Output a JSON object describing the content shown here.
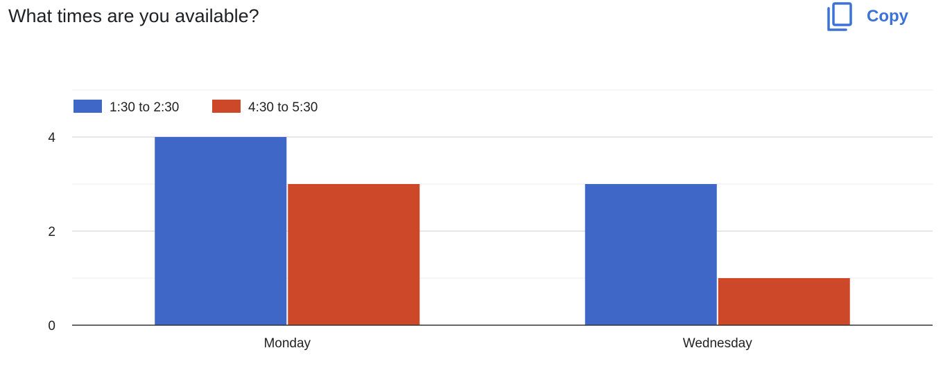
{
  "header": {
    "title": "What times are you available?",
    "copy_label": "Copy",
    "copy_icon": "copy-icon",
    "accent_color": "#3c72d8"
  },
  "chart_data": {
    "type": "bar",
    "categories": [
      "Monday",
      "Wednesday"
    ],
    "series": [
      {
        "name": "1:30 to 2:30",
        "values": [
          4,
          3
        ],
        "color": "#3f67c7"
      },
      {
        "name": "4:30 to 5:30",
        "values": [
          3,
          1
        ],
        "color": "#cc4829"
      }
    ],
    "yticks": [
      0,
      2,
      4
    ],
    "ylim": [
      0,
      5
    ],
    "grid": true,
    "legend_position": "top-left"
  }
}
